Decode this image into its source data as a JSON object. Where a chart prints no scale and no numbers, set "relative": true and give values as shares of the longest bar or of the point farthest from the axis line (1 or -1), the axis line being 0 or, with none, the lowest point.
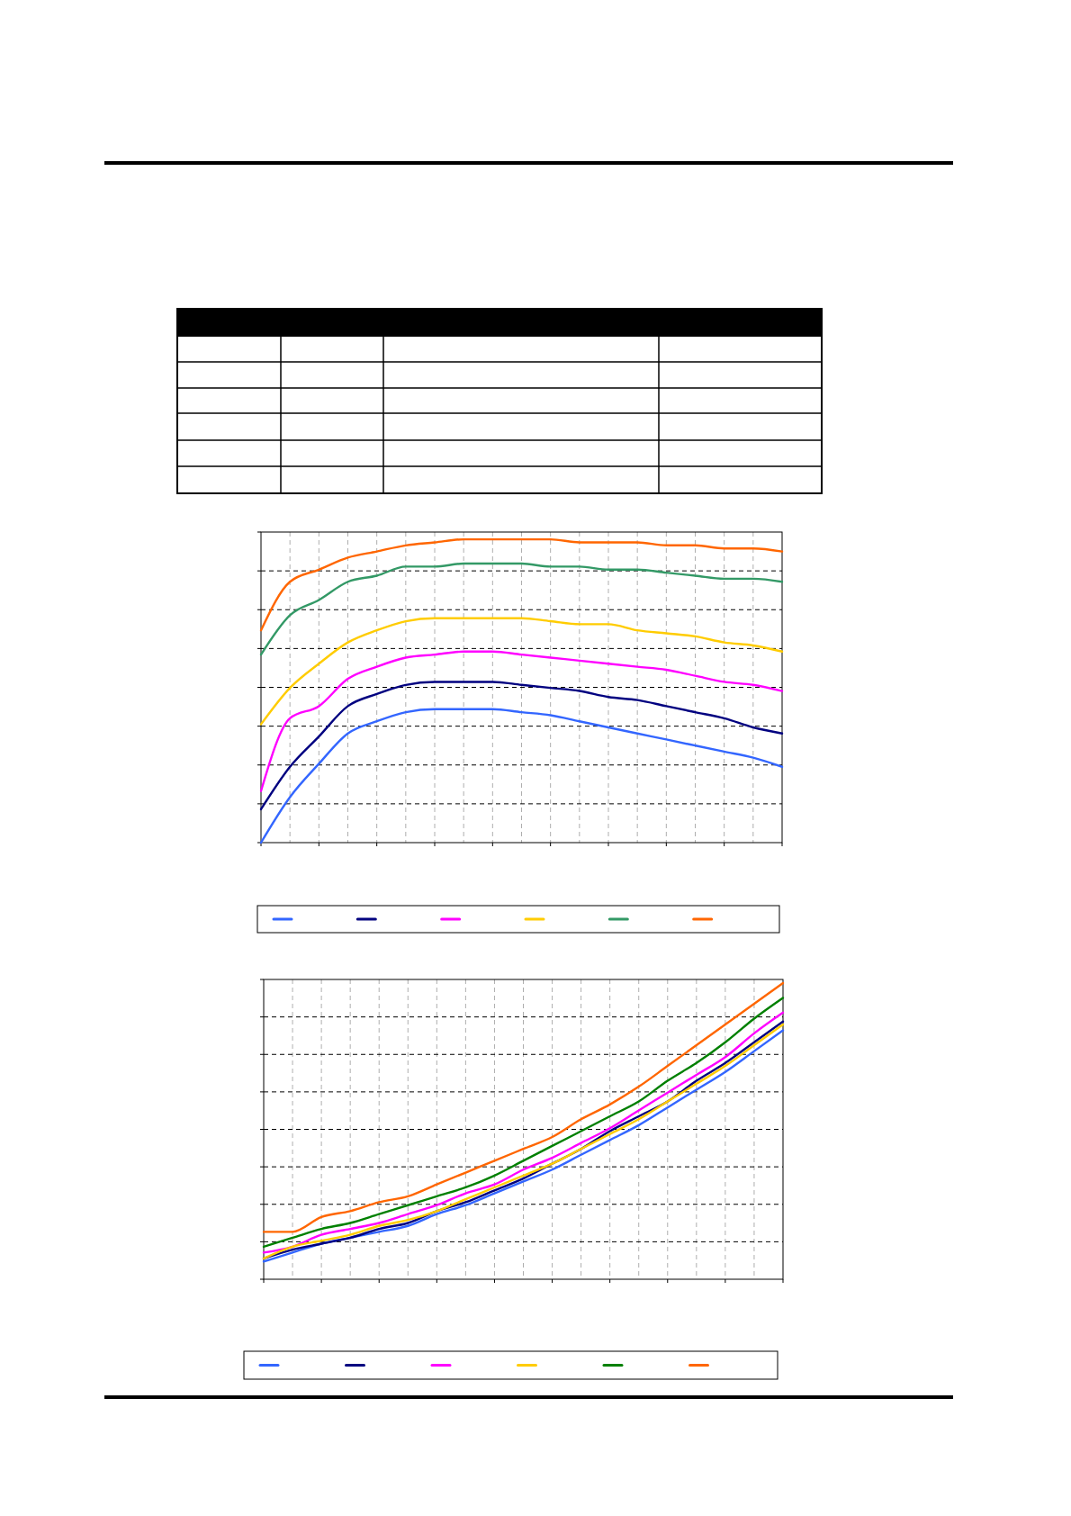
{
  "chart_data": [
    {
      "type": "line",
      "relative": true,
      "grid": true,
      "categories": [
        null,
        null,
        null,
        null,
        null,
        null,
        null,
        null,
        null,
        null,
        null,
        null,
        null,
        null,
        null,
        null,
        null,
        null,
        null
      ],
      "series": [
        {
          "color": "#3366ff",
          "values": [
            0,
            0.15,
            0.26,
            0.36,
            0.4,
            0.43,
            0.44,
            0.44,
            0.44,
            0.43,
            0.42,
            0.4,
            0.38,
            0.36,
            0.34,
            0.32,
            0.3,
            0.28,
            0.25
          ]
        },
        {
          "color": "#000080",
          "values": [
            0.11,
            0.25,
            0.35,
            0.45,
            0.49,
            0.52,
            0.53,
            0.53,
            0.53,
            0.52,
            0.51,
            0.5,
            0.48,
            0.47,
            0.45,
            0.43,
            0.41,
            0.38,
            0.36
          ]
        },
        {
          "color": "#ff00ff",
          "values": [
            0.17,
            0.41,
            0.45,
            0.54,
            0.58,
            0.61,
            0.62,
            0.63,
            0.63,
            0.62,
            0.61,
            0.6,
            0.59,
            0.58,
            0.57,
            0.55,
            0.53,
            0.52,
            0.5
          ]
        },
        {
          "color": "#ffcc00",
          "values": [
            0.39,
            0.51,
            0.59,
            0.66,
            0.7,
            0.73,
            0.74,
            0.74,
            0.74,
            0.74,
            0.73,
            0.72,
            0.72,
            0.7,
            0.69,
            0.68,
            0.66,
            0.65,
            0.63
          ]
        },
        {
          "color": "#339966",
          "values": [
            0.62,
            0.75,
            0.8,
            0.86,
            0.88,
            0.91,
            0.91,
            0.92,
            0.92,
            0.92,
            0.91,
            0.91,
            0.9,
            0.9,
            0.89,
            0.88,
            0.87,
            0.87,
            0.86
          ]
        },
        {
          "color": "#ff6600",
          "values": [
            0.7,
            0.86,
            0.9,
            0.94,
            0.96,
            0.98,
            0.99,
            1,
            1,
            1,
            1,
            0.99,
            0.99,
            0.99,
            0.98,
            0.98,
            0.97,
            0.97,
            0.96
          ]
        }
      ]
    },
    {
      "type": "line",
      "relative": true,
      "grid": true,
      "categories": [
        null,
        null,
        null,
        null,
        null,
        null,
        null,
        null,
        null,
        null,
        null,
        null,
        null,
        null,
        null,
        null,
        null,
        null,
        null
      ],
      "series": [
        {
          "color": "#3366ff",
          "values": [
            0.06,
            0.09,
            0.12,
            0.14,
            0.16,
            0.18,
            0.22,
            0.25,
            0.29,
            0.33,
            0.37,
            0.42,
            0.47,
            0.52,
            0.58,
            0.64,
            0.7,
            0.77,
            0.84
          ]
        },
        {
          "color": "#000080",
          "values": [
            0.07,
            0.1,
            0.12,
            0.14,
            0.17,
            0.19,
            0.23,
            0.26,
            0.3,
            0.34,
            0.39,
            0.44,
            0.5,
            0.55,
            0.6,
            0.67,
            0.73,
            0.8,
            0.87
          ]
        },
        {
          "color": "#ff00ff",
          "values": [
            0.09,
            0.11,
            0.15,
            0.17,
            0.19,
            0.22,
            0.25,
            0.29,
            0.32,
            0.37,
            0.41,
            0.46,
            0.51,
            0.57,
            0.63,
            0.69,
            0.75,
            0.83,
            0.9
          ]
        },
        {
          "color": "#ffcc00",
          "values": [
            0.07,
            0.11,
            0.13,
            0.15,
            0.18,
            0.2,
            0.23,
            0.27,
            0.31,
            0.35,
            0.39,
            0.44,
            0.49,
            0.54,
            0.6,
            0.66,
            0.72,
            0.79,
            0.86
          ]
        },
        {
          "color": "#008000",
          "values": [
            0.11,
            0.14,
            0.17,
            0.19,
            0.22,
            0.25,
            0.28,
            0.31,
            0.35,
            0.4,
            0.45,
            0.5,
            0.55,
            0.6,
            0.67,
            0.73,
            0.8,
            0.88,
            0.95
          ]
        },
        {
          "color": "#ff6600",
          "values": [
            0.16,
            0.16,
            0.21,
            0.23,
            0.26,
            0.28,
            0.32,
            0.36,
            0.4,
            0.44,
            0.48,
            0.54,
            0.59,
            0.65,
            0.72,
            0.79,
            0.86,
            0.93,
            1
          ]
        }
      ]
    }
  ]
}
